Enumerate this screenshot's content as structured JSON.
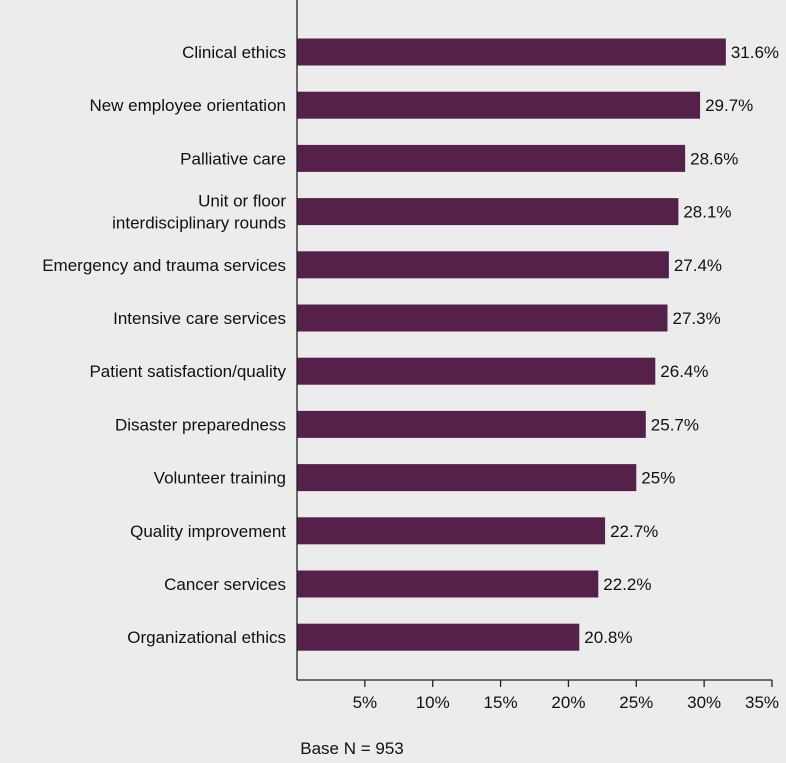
{
  "chart_data": {
    "type": "bar",
    "orientation": "horizontal",
    "categories": [
      [
        "Clinical ethics"
      ],
      [
        "New employee orientation"
      ],
      [
        "Palliative care"
      ],
      [
        "Unit or floor",
        "interdisciplinary rounds"
      ],
      [
        "Emergency and trauma services"
      ],
      [
        "Intensive care services"
      ],
      [
        "Patient satisfaction/quality"
      ],
      [
        "Disaster preparedness"
      ],
      [
        "Volunteer training"
      ],
      [
        "Quality improvement"
      ],
      [
        "Cancer services"
      ],
      [
        "Organizational ethics"
      ]
    ],
    "values": [
      31.6,
      29.7,
      28.6,
      28.1,
      27.4,
      27.3,
      26.4,
      25.7,
      25,
      22.7,
      22.2,
      20.8
    ],
    "value_labels": [
      "31.6%",
      "29.7%",
      "28.6%",
      "28.1%",
      "27.4%",
      "27.3%",
      "26.4%",
      "25.7%",
      "25%",
      "22.7%",
      "22.2%",
      "20.8%"
    ],
    "xlim": [
      0,
      35
    ],
    "xticks": [
      5,
      10,
      15,
      20,
      25,
      30,
      35
    ],
    "xtick_labels": [
      "5%",
      "10%",
      "15%",
      "20%",
      "25%",
      "30%",
      "35%"
    ],
    "grid": false,
    "bar_color": "#55214a",
    "footnote": "Base N = 953"
  }
}
